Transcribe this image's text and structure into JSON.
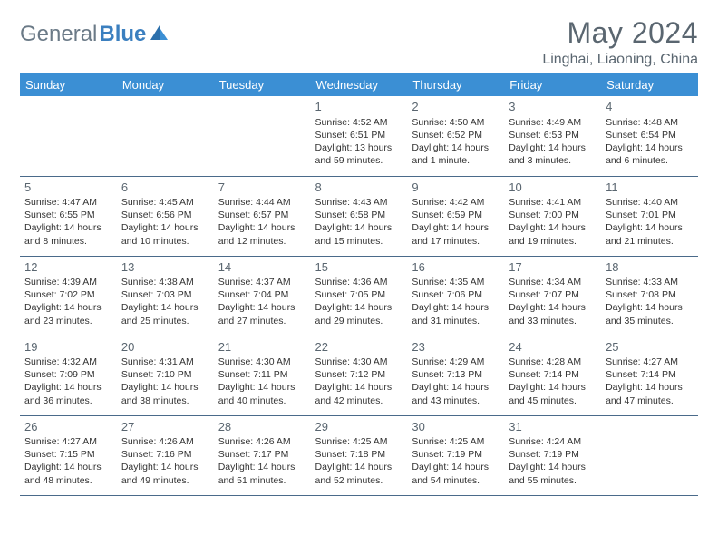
{
  "logo": {
    "text1": "General",
    "text2": "Blue"
  },
  "title": "May 2024",
  "subtitle": "Linghai, Liaoning, China",
  "header_bg": "#3b8fd4",
  "header_fg": "#ffffff",
  "border_color": "#4a6a8a",
  "days": [
    "Sunday",
    "Monday",
    "Tuesday",
    "Wednesday",
    "Thursday",
    "Friday",
    "Saturday"
  ],
  "weeks": [
    [
      {
        "n": "",
        "sr": "",
        "ss": "",
        "dl": ""
      },
      {
        "n": "",
        "sr": "",
        "ss": "",
        "dl": ""
      },
      {
        "n": "",
        "sr": "",
        "ss": "",
        "dl": ""
      },
      {
        "n": "1",
        "sr": "4:52 AM",
        "ss": "6:51 PM",
        "dl": "13 hours and 59 minutes."
      },
      {
        "n": "2",
        "sr": "4:50 AM",
        "ss": "6:52 PM",
        "dl": "14 hours and 1 minute."
      },
      {
        "n": "3",
        "sr": "4:49 AM",
        "ss": "6:53 PM",
        "dl": "14 hours and 3 minutes."
      },
      {
        "n": "4",
        "sr": "4:48 AM",
        "ss": "6:54 PM",
        "dl": "14 hours and 6 minutes."
      }
    ],
    [
      {
        "n": "5",
        "sr": "4:47 AM",
        "ss": "6:55 PM",
        "dl": "14 hours and 8 minutes."
      },
      {
        "n": "6",
        "sr": "4:45 AM",
        "ss": "6:56 PM",
        "dl": "14 hours and 10 minutes."
      },
      {
        "n": "7",
        "sr": "4:44 AM",
        "ss": "6:57 PM",
        "dl": "14 hours and 12 minutes."
      },
      {
        "n": "8",
        "sr": "4:43 AM",
        "ss": "6:58 PM",
        "dl": "14 hours and 15 minutes."
      },
      {
        "n": "9",
        "sr": "4:42 AM",
        "ss": "6:59 PM",
        "dl": "14 hours and 17 minutes."
      },
      {
        "n": "10",
        "sr": "4:41 AM",
        "ss": "7:00 PM",
        "dl": "14 hours and 19 minutes."
      },
      {
        "n": "11",
        "sr": "4:40 AM",
        "ss": "7:01 PM",
        "dl": "14 hours and 21 minutes."
      }
    ],
    [
      {
        "n": "12",
        "sr": "4:39 AM",
        "ss": "7:02 PM",
        "dl": "14 hours and 23 minutes."
      },
      {
        "n": "13",
        "sr": "4:38 AM",
        "ss": "7:03 PM",
        "dl": "14 hours and 25 minutes."
      },
      {
        "n": "14",
        "sr": "4:37 AM",
        "ss": "7:04 PM",
        "dl": "14 hours and 27 minutes."
      },
      {
        "n": "15",
        "sr": "4:36 AM",
        "ss": "7:05 PM",
        "dl": "14 hours and 29 minutes."
      },
      {
        "n": "16",
        "sr": "4:35 AM",
        "ss": "7:06 PM",
        "dl": "14 hours and 31 minutes."
      },
      {
        "n": "17",
        "sr": "4:34 AM",
        "ss": "7:07 PM",
        "dl": "14 hours and 33 minutes."
      },
      {
        "n": "18",
        "sr": "4:33 AM",
        "ss": "7:08 PM",
        "dl": "14 hours and 35 minutes."
      }
    ],
    [
      {
        "n": "19",
        "sr": "4:32 AM",
        "ss": "7:09 PM",
        "dl": "14 hours and 36 minutes."
      },
      {
        "n": "20",
        "sr": "4:31 AM",
        "ss": "7:10 PM",
        "dl": "14 hours and 38 minutes."
      },
      {
        "n": "21",
        "sr": "4:30 AM",
        "ss": "7:11 PM",
        "dl": "14 hours and 40 minutes."
      },
      {
        "n": "22",
        "sr": "4:30 AM",
        "ss": "7:12 PM",
        "dl": "14 hours and 42 minutes."
      },
      {
        "n": "23",
        "sr": "4:29 AM",
        "ss": "7:13 PM",
        "dl": "14 hours and 43 minutes."
      },
      {
        "n": "24",
        "sr": "4:28 AM",
        "ss": "7:14 PM",
        "dl": "14 hours and 45 minutes."
      },
      {
        "n": "25",
        "sr": "4:27 AM",
        "ss": "7:14 PM",
        "dl": "14 hours and 47 minutes."
      }
    ],
    [
      {
        "n": "26",
        "sr": "4:27 AM",
        "ss": "7:15 PM",
        "dl": "14 hours and 48 minutes."
      },
      {
        "n": "27",
        "sr": "4:26 AM",
        "ss": "7:16 PM",
        "dl": "14 hours and 49 minutes."
      },
      {
        "n": "28",
        "sr": "4:26 AM",
        "ss": "7:17 PM",
        "dl": "14 hours and 51 minutes."
      },
      {
        "n": "29",
        "sr": "4:25 AM",
        "ss": "7:18 PM",
        "dl": "14 hours and 52 minutes."
      },
      {
        "n": "30",
        "sr": "4:25 AM",
        "ss": "7:19 PM",
        "dl": "14 hours and 54 minutes."
      },
      {
        "n": "31",
        "sr": "4:24 AM",
        "ss": "7:19 PM",
        "dl": "14 hours and 55 minutes."
      },
      {
        "n": "",
        "sr": "",
        "ss": "",
        "dl": ""
      }
    ]
  ],
  "labels": {
    "sunrise": "Sunrise:",
    "sunset": "Sunset:",
    "daylight": "Daylight:"
  }
}
